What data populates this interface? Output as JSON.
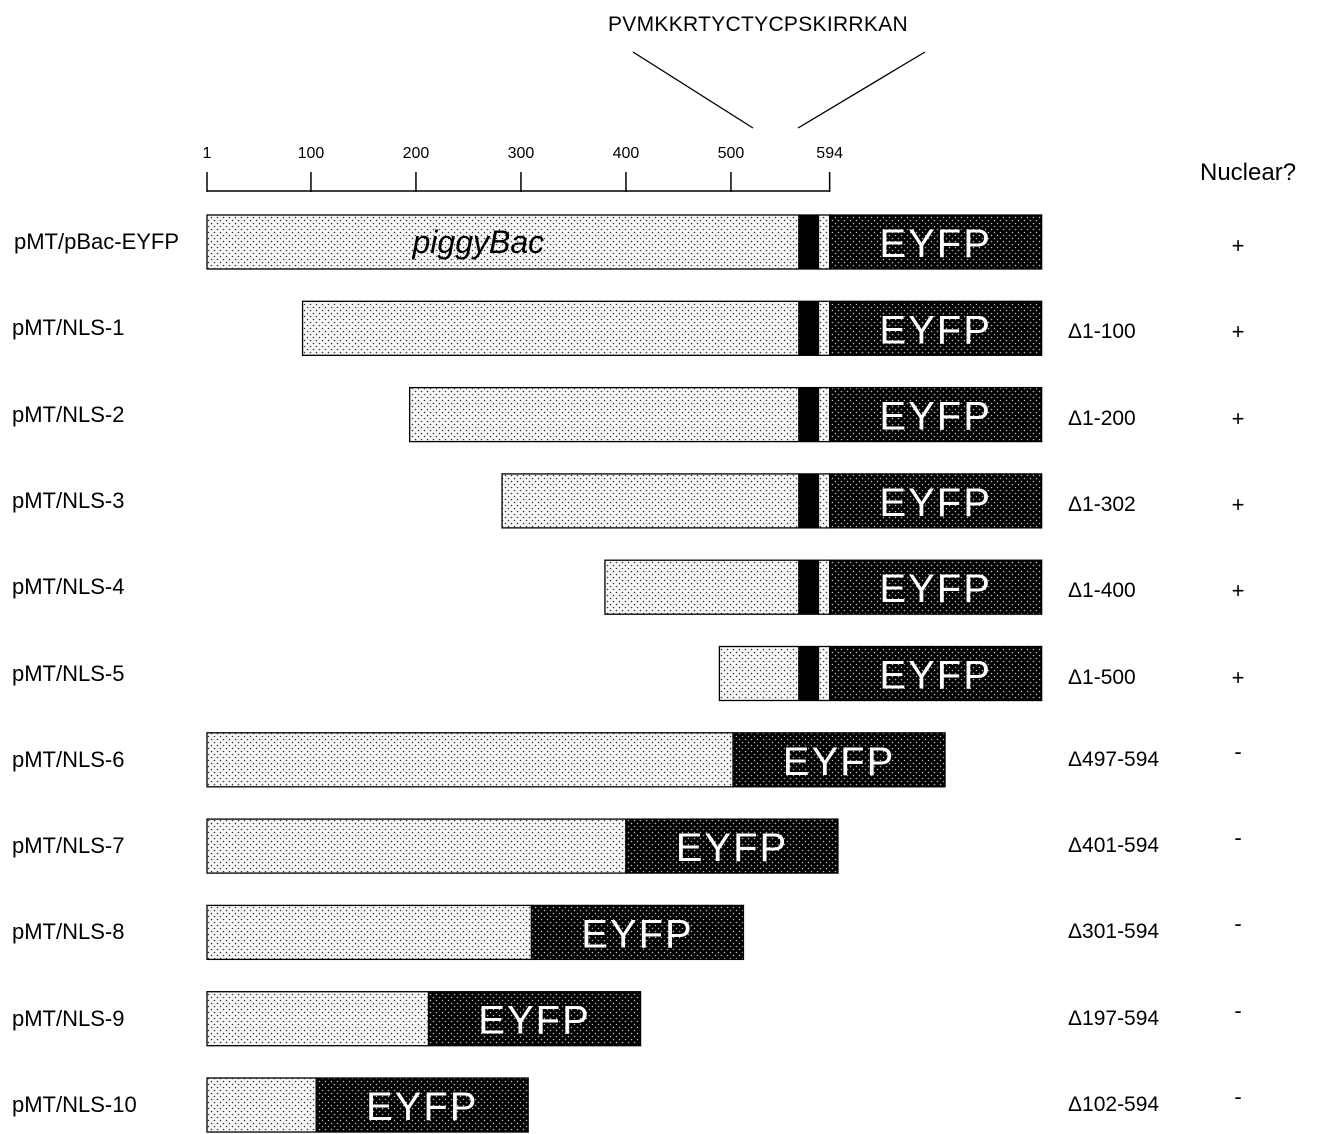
{
  "header": {
    "sequence": "PVMKKRTYCTYCPSKIRRKAN",
    "nuclear_column": "Nuclear?"
  },
  "scale": {
    "min": 1,
    "max": 594,
    "ticks": [
      {
        "value": 1,
        "label": "1"
      },
      {
        "value": 100,
        "label": "100"
      },
      {
        "value": 200,
        "label": "200"
      },
      {
        "value": 300,
        "label": "300"
      },
      {
        "value": 400,
        "label": "400"
      },
      {
        "value": 500,
        "label": "500"
      },
      {
        "value": 594,
        "label": "594"
      }
    ]
  },
  "pbac_label": "piggyBac",
  "eyfp_label": "EYFP",
  "nls_region": {
    "start": 564,
    "end": 584
  },
  "constructs": [
    {
      "name": "pMT/pBac-EYFP",
      "start": 1,
      "end": 594,
      "deletion": "",
      "nuclear": "+"
    },
    {
      "name": "pMT/NLS-1",
      "start": 92,
      "end": 594,
      "deletion": "Δ1-100",
      "nuclear": "+"
    },
    {
      "name": "pMT/NLS-2",
      "start": 194,
      "end": 594,
      "deletion": "Δ1-200",
      "nuclear": "+"
    },
    {
      "name": "pMT/NLS-3",
      "start": 282,
      "end": 594,
      "deletion": "Δ1-302",
      "nuclear": "+"
    },
    {
      "name": "pMT/NLS-4",
      "start": 380,
      "end": 594,
      "deletion": "Δ1-400",
      "nuclear": "+"
    },
    {
      "name": "pMT/NLS-5",
      "start": 489,
      "end": 594,
      "deletion": "Δ1-500",
      "nuclear": "+"
    },
    {
      "name": "pMT/NLS-6",
      "start": 1,
      "end": 502,
      "deletion": "Δ497-594",
      "nuclear": "-"
    },
    {
      "name": "pMT/NLS-7",
      "start": 1,
      "end": 400,
      "deletion": "Δ401-594",
      "nuclear": "-"
    },
    {
      "name": "pMT/NLS-8",
      "start": 1,
      "end": 310,
      "deletion": "Δ301-594",
      "nuclear": "-"
    },
    {
      "name": "pMT/NLS-9",
      "start": 1,
      "end": 212,
      "deletion": "Δ197-594",
      "nuclear": "-"
    },
    {
      "name": "pMT/NLS-10",
      "start": 1,
      "end": 105,
      "deletion": "Δ102-594",
      "nuclear": "-"
    }
  ],
  "colors": {
    "pbac_fill": "#f4f4f4",
    "eyfp_fill": "#000000",
    "nls_fill": "#000000",
    "outline": "#000000"
  }
}
